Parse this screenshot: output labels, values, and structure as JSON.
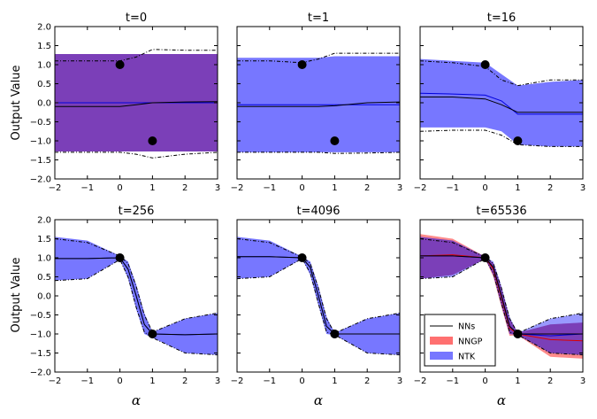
{
  "figure": {
    "ylabel": "Output Value",
    "xlabel": "α",
    "legend": {
      "placement": "lower-left of last panel",
      "entries": [
        {
          "label": "NNs",
          "kind": "line",
          "color": "#000000"
        },
        {
          "label": "NNGP",
          "kind": "band",
          "color": "#ff7070"
        },
        {
          "label": "NTK",
          "kind": "band",
          "color": "#7777ff"
        }
      ]
    },
    "colors": {
      "ntk_band": "#7777ff",
      "nngp_band": "#ff7777",
      "overlap": "#7b3fb8",
      "ntk_mean": "#0000dd",
      "nngp_mean": "#dd0000",
      "nn_mean": "#000000"
    }
  },
  "chart_data": [
    {
      "type": "line",
      "title": "t=0",
      "xlim": [
        -2,
        3
      ],
      "ylim": [
        -2.0,
        2.0
      ],
      "xticks": [
        "−2",
        "−1",
        "0",
        "1",
        "2",
        "3"
      ],
      "yticks": [
        "−2.0",
        "−1.5",
        "−1.0",
        "−0.5",
        "0.0",
        "0.5",
        "1.0",
        "1.5",
        "2.0"
      ],
      "x": [
        -2,
        -1,
        0,
        0.5,
        1,
        2,
        3
      ],
      "train_points": {
        "x": [
          0,
          1
        ],
        "y": [
          1.0,
          -1.0
        ]
      },
      "nn_mean": [
        -0.1,
        -0.1,
        -0.1,
        -0.05,
        0.0,
        0.02,
        0.03
      ],
      "nn_upper": [
        1.1,
        1.1,
        1.1,
        1.2,
        1.4,
        1.38,
        1.38
      ],
      "nn_lower": [
        -1.3,
        -1.3,
        -1.3,
        -1.35,
        -1.45,
        -1.35,
        -1.3
      ],
      "ntk_band": {
        "mean": [
          0.0,
          0.0,
          0.0,
          0.0,
          0.0,
          0.0,
          0.0
        ],
        "upper": [
          1.28,
          1.28,
          1.28,
          1.28,
          1.28,
          1.28,
          1.28
        ],
        "lower": [
          -1.28,
          -1.28,
          -1.28,
          -1.28,
          -1.28,
          -1.28,
          -1.28
        ]
      },
      "nngp_band": {
        "mean": [
          0.0,
          0.0,
          0.0,
          0.0,
          0.0,
          0.0,
          0.0
        ],
        "upper": [
          1.28,
          1.28,
          1.28,
          1.28,
          1.28,
          1.28,
          1.28
        ],
        "lower": [
          -1.28,
          -1.28,
          -1.28,
          -1.28,
          -1.28,
          -1.28,
          -1.28
        ]
      }
    },
    {
      "type": "line",
      "title": "t=1",
      "xlim": [
        -2,
        3
      ],
      "ylim": [
        -2.0,
        2.0
      ],
      "xticks": [
        "−2",
        "−1",
        "0",
        "1",
        "2",
        "3"
      ],
      "yticks": [
        "−2.0",
        "−1.5",
        "−1.0",
        "−0.5",
        "0.0",
        "0.5",
        "1.0",
        "1.5",
        "2.0"
      ],
      "x": [
        -2,
        -1,
        0,
        0.5,
        1,
        2,
        3
      ],
      "train_points": {
        "x": [
          0,
          1
        ],
        "y": [
          1.0,
          -1.0
        ]
      },
      "nn_mean": [
        -0.1,
        -0.1,
        -0.1,
        -0.1,
        -0.08,
        0.0,
        0.02
      ],
      "nn_upper": [
        1.1,
        1.1,
        1.05,
        1.15,
        1.3,
        1.3,
        1.3
      ],
      "nn_lower": [
        -1.3,
        -1.3,
        -1.3,
        -1.3,
        -1.33,
        -1.32,
        -1.3
      ],
      "ntk_band": {
        "mean": [
          -0.05,
          -0.05,
          -0.05,
          -0.05,
          -0.05,
          -0.05,
          -0.05
        ],
        "upper": [
          1.18,
          1.18,
          1.18,
          1.18,
          1.22,
          1.22,
          1.22
        ],
        "lower": [
          -1.3,
          -1.3,
          -1.3,
          -1.3,
          -1.3,
          -1.3,
          -1.3
        ]
      }
    },
    {
      "type": "line",
      "title": "t=16",
      "xlim": [
        -2,
        3
      ],
      "ylim": [
        -2.0,
        2.0
      ],
      "xticks": [
        "−2",
        "−1",
        "0",
        "1",
        "2",
        "3"
      ],
      "yticks": [
        "−2.0",
        "−1.5",
        "−1.0",
        "−0.5",
        "0.0",
        "0.5",
        "1.0",
        "1.5",
        "2.0"
      ],
      "x": [
        -2,
        -1,
        0,
        0.5,
        1,
        2,
        3
      ],
      "train_points": {
        "x": [
          0,
          1
        ],
        "y": [
          1.0,
          -1.0
        ]
      },
      "nn_mean": [
        0.15,
        0.15,
        0.1,
        -0.05,
        -0.25,
        -0.25,
        -0.25
      ],
      "nn_upper": [
        1.1,
        1.05,
        0.95,
        0.6,
        0.45,
        0.6,
        0.6
      ],
      "nn_lower": [
        -0.75,
        -0.72,
        -0.72,
        -0.85,
        -1.1,
        -1.15,
        -1.15
      ],
      "ntk_band": {
        "mean": [
          0.25,
          0.23,
          0.2,
          0.05,
          -0.3,
          -0.3,
          -0.3
        ],
        "upper": [
          1.15,
          1.1,
          1.05,
          0.75,
          0.45,
          0.55,
          0.6
        ],
        "lower": [
          -0.65,
          -0.65,
          -0.65,
          -0.75,
          -1.1,
          -1.15,
          -1.15
        ]
      }
    },
    {
      "type": "line",
      "title": "t=256",
      "xlim": [
        -2,
        3
      ],
      "ylim": [
        -2.0,
        2.0
      ],
      "xticks": [
        "−2",
        "−1",
        "0",
        "1",
        "2",
        "3"
      ],
      "yticks": [
        "−2.0",
        "−1.5",
        "−1.0",
        "−0.5",
        "0.0",
        "0.5",
        "1.0",
        "1.5",
        "2.0"
      ],
      "x": [
        -2,
        -1,
        0,
        0.25,
        0.5,
        0.75,
        1,
        2,
        3
      ],
      "train_points": {
        "x": [
          0,
          1
        ],
        "y": [
          1.0,
          -1.0
        ]
      },
      "nn_mean": [
        0.98,
        0.98,
        1.0,
        0.7,
        0.0,
        -0.75,
        -1.0,
        -1.02,
        -1.0
      ],
      "nn_upper": [
        1.5,
        1.4,
        1.05,
        0.85,
        0.25,
        -0.5,
        -0.95,
        -0.6,
        -0.45
      ],
      "nn_lower": [
        0.4,
        0.45,
        0.95,
        0.5,
        -0.3,
        -0.95,
        -1.1,
        -1.5,
        -1.55
      ],
      "ntk_band": {
        "mean": [
          0.98,
          0.98,
          1.0,
          0.7,
          0.0,
          -0.75,
          -1.0,
          -1.02,
          -1.0
        ],
        "upper": [
          1.55,
          1.45,
          1.05,
          0.9,
          0.3,
          -0.45,
          -0.95,
          -0.6,
          -0.45
        ],
        "lower": [
          0.4,
          0.45,
          0.95,
          0.45,
          -0.35,
          -1.0,
          -1.1,
          -1.5,
          -1.55
        ]
      }
    },
    {
      "type": "line",
      "title": "t=4096",
      "xlim": [
        -2,
        3
      ],
      "ylim": [
        -2.0,
        2.0
      ],
      "xticks": [
        "−2",
        "−1",
        "0",
        "1",
        "2",
        "3"
      ],
      "yticks": [
        "−2.0",
        "−1.5",
        "−1.0",
        "−0.5",
        "0.0",
        "0.5",
        "1.0",
        "1.5",
        "2.0"
      ],
      "x": [
        -2,
        -1,
        0,
        0.25,
        0.5,
        0.75,
        1,
        2,
        3
      ],
      "train_points": {
        "x": [
          0,
          1
        ],
        "y": [
          1.0,
          -1.0
        ]
      },
      "nn_mean": [
        1.03,
        1.03,
        1.0,
        0.75,
        0.0,
        -0.8,
        -1.0,
        -1.0,
        -1.0
      ],
      "nn_upper": [
        1.5,
        1.4,
        1.02,
        0.85,
        0.2,
        -0.6,
        -0.98,
        -0.6,
        -0.45
      ],
      "nn_lower": [
        0.45,
        0.5,
        0.98,
        0.6,
        -0.2,
        -0.95,
        -1.02,
        -1.5,
        -1.55
      ],
      "ntk_band": {
        "mean": [
          1.03,
          1.03,
          1.0,
          0.75,
          0.0,
          -0.8,
          -1.0,
          -1.0,
          -1.0
        ],
        "upper": [
          1.55,
          1.45,
          1.03,
          0.9,
          0.25,
          -0.55,
          -0.97,
          -0.6,
          -0.45
        ],
        "lower": [
          0.45,
          0.5,
          0.97,
          0.55,
          -0.25,
          -1.0,
          -1.03,
          -1.5,
          -1.55
        ]
      }
    },
    {
      "type": "line",
      "title": "t=65536",
      "xlim": [
        -2,
        3
      ],
      "ylim": [
        -2.0,
        2.0
      ],
      "xticks": [
        "−2",
        "−1",
        "0",
        "1",
        "2",
        "3"
      ],
      "yticks": [
        "−2.0",
        "−1.5",
        "−1.0",
        "−0.5",
        "0.0",
        "0.5",
        "1.0",
        "1.5",
        "2.0"
      ],
      "x": [
        -2,
        -1,
        0,
        0.25,
        0.5,
        0.75,
        1,
        2,
        3
      ],
      "train_points": {
        "x": [
          0,
          1
        ],
        "y": [
          1.0,
          -1.0
        ]
      },
      "nn_mean": [
        1.05,
        1.05,
        1.0,
        0.75,
        0.0,
        -0.8,
        -1.0,
        -1.0,
        -1.0
      ],
      "nn_upper": [
        1.5,
        1.4,
        1.02,
        0.85,
        0.2,
        -0.6,
        -0.98,
        -0.6,
        -0.45
      ],
      "nn_lower": [
        0.45,
        0.5,
        0.98,
        0.6,
        -0.2,
        -0.95,
        -1.02,
        -1.5,
        -1.55
      ],
      "ntk_band": {
        "mean": [
          1.05,
          1.05,
          1.0,
          0.75,
          0.0,
          -0.8,
          -1.0,
          -1.05,
          -1.0
        ],
        "upper": [
          1.55,
          1.45,
          1.03,
          0.9,
          0.25,
          -0.55,
          -0.97,
          -0.6,
          -0.45
        ],
        "lower": [
          0.45,
          0.5,
          0.97,
          0.55,
          -0.25,
          -1.0,
          -1.03,
          -1.5,
          -1.55
        ]
      },
      "nngp_band": {
        "mean": [
          1.05,
          1.08,
          1.0,
          0.7,
          -0.05,
          -0.85,
          -1.0,
          -1.15,
          -1.18
        ],
        "upper": [
          1.62,
          1.5,
          1.03,
          0.85,
          0.2,
          -0.6,
          -0.97,
          -0.75,
          -0.7
        ],
        "lower": [
          0.45,
          0.55,
          0.97,
          0.5,
          -0.3,
          -1.05,
          -1.03,
          -1.6,
          -1.65
        ]
      }
    }
  ]
}
